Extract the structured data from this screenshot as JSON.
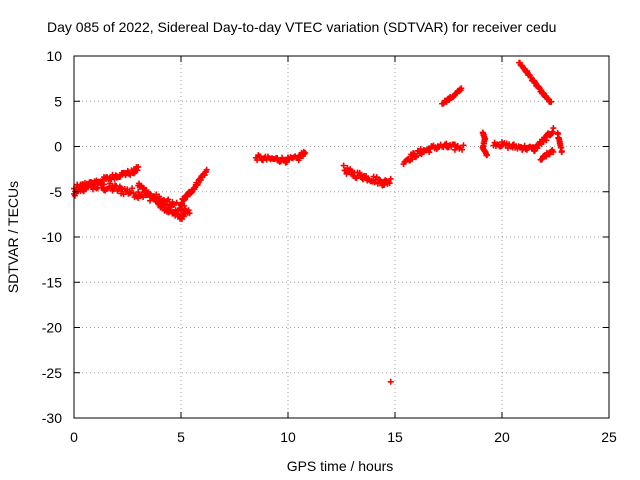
{
  "chart_data": {
    "type": "scatter",
    "title": "Day 085 of 2022, Sidereal Day-to-day VTEC variation (SDTVAR) for receiver cedu",
    "xlabel": "GPS time / hours",
    "ylabel": "SDTVAR / TECUs",
    "xlim": [
      0,
      25
    ],
    "ylim": [
      -30,
      10
    ],
    "xticks": [
      0,
      5,
      10,
      15,
      20,
      25
    ],
    "yticks": [
      -30,
      -25,
      -20,
      -15,
      -10,
      -5,
      0,
      5,
      10
    ],
    "grid": true,
    "marker": "plus",
    "marker_color": "#ff0000",
    "series": [
      {
        "name": "SDTVAR",
        "segments": [
          {
            "x": [
              0.0,
              0.3,
              0.6,
              1.0,
              1.4,
              1.8,
              2.2,
              2.6,
              3.0,
              3.4,
              3.8,
              4.2,
              4.6,
              5.0,
              5.2
            ],
            "y": [
              -4.8,
              -4.6,
              -4.2,
              -4.4,
              -4.5,
              -4.6,
              -4.8,
              -5.0,
              -5.2,
              -5.4,
              -5.7,
              -6.2,
              -6.5,
              -6.8,
              -6.9
            ],
            "spread": 1.0
          },
          {
            "x": [
              0.0,
              0.5,
              1.0,
              1.5,
              2.0,
              2.4,
              2.8,
              3.0
            ],
            "y": [
              -5.2,
              -4.6,
              -3.9,
              -3.6,
              -3.2,
              -3.0,
              -2.8,
              -2.4
            ],
            "spread": 0.6
          },
          {
            "x": [
              3.0,
              3.5,
              4.0,
              4.5,
              5.0,
              5.4
            ],
            "y": [
              -4.2,
              -5.2,
              -6.4,
              -7.3,
              -7.8,
              -7.2
            ],
            "spread": 0.6
          },
          {
            "x": [
              5.0,
              5.3,
              5.6,
              5.9,
              6.2
            ],
            "y": [
              -6.2,
              -5.4,
              -4.6,
              -3.6,
              -2.7
            ],
            "spread": 0.5
          },
          {
            "x": [
              8.5,
              9.0,
              9.5,
              10.0,
              10.5,
              10.8
            ],
            "y": [
              -1.2,
              -1.4,
              -1.4,
              -1.5,
              -1.3,
              -0.5
            ],
            "spread": 0.6
          },
          {
            "x": [
              12.6,
              13.0,
              13.5,
              14.0,
              14.5,
              14.8
            ],
            "y": [
              -2.5,
              -3.0,
              -3.3,
              -3.6,
              -4.0,
              -3.8
            ],
            "spread": 0.8
          },
          {
            "x": [
              14.8
            ],
            "y": [
              -26.0
            ],
            "spread": 0.0
          },
          {
            "x": [
              15.4,
              15.8,
              16.2,
              16.6,
              17.0,
              17.4,
              17.8,
              18.2
            ],
            "y": [
              -1.6,
              -1.1,
              -0.6,
              -0.3,
              0.0,
              0.0,
              -0.1,
              -0.1
            ],
            "spread": 0.7
          },
          {
            "x": [
              17.2,
              17.5,
              17.8,
              18.1
            ],
            "y": [
              4.8,
              5.2,
              5.7,
              6.4
            ],
            "spread": 0.3
          },
          {
            "x": [
              19.1,
              19.2,
              19.1,
              19.3
            ],
            "y": [
              1.6,
              0.8,
              -0.1,
              -1.0
            ],
            "spread": 0.2
          },
          {
            "x": [
              19.6,
              20.0,
              20.5,
              21.0,
              21.5,
              22.0,
              22.4
            ],
            "y": [
              0.4,
              0.2,
              0.0,
              -0.1,
              -0.3,
              0.8,
              1.8
            ],
            "spread": 0.6
          },
          {
            "x": [
              20.8,
              21.2,
              21.6,
              22.0,
              22.3
            ],
            "y": [
              9.3,
              8.1,
              6.8,
              5.6,
              4.8
            ],
            "spread": 0.3
          },
          {
            "x": [
              21.8,
              22.1,
              22.4
            ],
            "y": [
              -1.5,
              -0.9,
              -0.5
            ],
            "spread": 0.4
          },
          {
            "x": [
              22.6,
              22.7,
              22.8
            ],
            "y": [
              1.4,
              0.5,
              -0.6
            ],
            "spread": 0.4
          }
        ]
      }
    ]
  }
}
